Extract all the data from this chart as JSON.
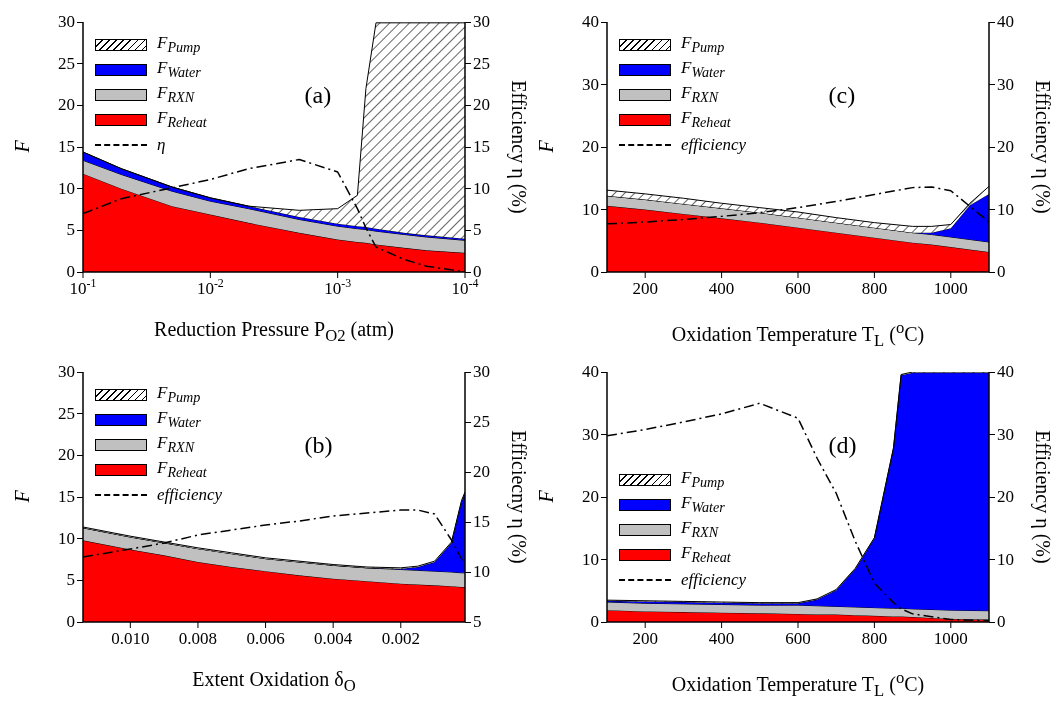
{
  "chart_data": [
    {
      "type": "area",
      "stacked": true,
      "log": "x",
      "xlabel": "Reduction Pressure P$_{O2}$ (atm)",
      "ylabel": "F",
      "y2label": "Efficiency η (%)",
      "annotations": [
        "(a)"
      ],
      "legend": "top left",
      "x": [
        0.1,
        0.05,
        0.02,
        0.01,
        0.005,
        0.002,
        0.001,
        0.0007,
        0.0006,
        0.0005,
        0.0003,
        0.0002,
        0.0001
      ],
      "xlim": [
        0.1,
        0.0001
      ],
      "xticks": [
        {
          "value": 0.1,
          "label": "10$^{-1}$"
        },
        {
          "value": 0.01,
          "label": "10$^{-2}$"
        },
        {
          "value": 0.001,
          "label": "10$^{-3}$"
        },
        {
          "value": 0.0001,
          "label": "10$^{-4}$"
        }
      ],
      "ylim": [
        0,
        30
      ],
      "yticks": [
        0,
        5,
        10,
        15,
        20,
        25,
        30
      ],
      "y2lim": [
        0,
        30
      ],
      "y2ticks": [
        0,
        5,
        10,
        15,
        20,
        25,
        30
      ],
      "series": [
        {
          "name": "F$_{Reheat}$",
          "color": "#ff0000",
          "values": [
            11.8,
            10.0,
            7.9,
            6.9,
            5.9,
            4.7,
            3.9,
            3.6,
            3.5,
            3.3,
            2.9,
            2.6,
            2.3
          ]
        },
        {
          "name": "F$_{RXN}$",
          "color": "#c0c0c0",
          "values": [
            1.6,
            1.7,
            1.8,
            1.6,
            1.7,
            1.6,
            1.6,
            1.6,
            1.6,
            1.6,
            1.6,
            1.6,
            1.5
          ]
        },
        {
          "name": "F$_{Water}$",
          "color": "#0000ff",
          "values": [
            1.0,
            0.7,
            0.5,
            0.4,
            0.3,
            0.3,
            0.3,
            0.3,
            0.3,
            0.3,
            0.2,
            0.2,
            0.2
          ]
        },
        {
          "name": "F$_{Pump}$",
          "color": "#ffffff",
          "values": [
            0,
            0,
            0,
            0,
            0,
            0.8,
            1.8,
            3.7,
            16.6,
            24.7,
            25.2,
            25.5,
            25.9
          ]
        },
        {
          "name": "η",
          "type": "line",
          "axis": "y2",
          "color": "#000000",
          "line_style": "dashed",
          "marker": "none",
          "values": [
            7.0,
            8.8,
            10.1,
            11.1,
            12.4,
            13.5,
            12.0,
            7.6,
            5.3,
            3.0,
            1.5,
            0.7,
            0
          ]
        }
      ]
    },
    {
      "type": "area",
      "stacked": true,
      "xlabel": "Oxidation Temperature T$_{L}$ ($^{o}$C)",
      "ylabel": "F",
      "y2label": "Efficiency η (%)",
      "annotations": [
        "(c)"
      ],
      "legend": "top left",
      "x": [
        100,
        200,
        300,
        400,
        500,
        600,
        700,
        800,
        900,
        950,
        1000,
        1050,
        1100
      ],
      "xlim": [
        100,
        1100
      ],
      "xticks": [
        200,
        400,
        600,
        800,
        1000
      ],
      "ylim": [
        0,
        40
      ],
      "yticks": [
        0,
        10,
        20,
        30,
        40
      ],
      "y2lim": [
        0,
        40
      ],
      "y2ticks": [
        0,
        10,
        20,
        30,
        40
      ],
      "series": [
        {
          "name": "F$_{Reheat}$",
          "color": "#ff0000",
          "values": [
            10.6,
            10.0,
            9.3,
            8.6,
            7.9,
            7.1,
            6.3,
            5.5,
            4.7,
            4.4,
            4.0,
            3.6,
            3.2
          ]
        },
        {
          "name": "F$_{RXN}$",
          "color": "#c0c0c0",
          "values": [
            1.6,
            1.6,
            1.6,
            1.6,
            1.6,
            1.6,
            1.6,
            1.6,
            1.6,
            1.6,
            1.6,
            1.6,
            1.6
          ]
        },
        {
          "name": "F$_{Water}$",
          "color": "#0000ff",
          "values": [
            0,
            0,
            0,
            0,
            0,
            0,
            0,
            0,
            0,
            0.3,
            1.4,
            5.5,
            7.7
          ]
        },
        {
          "name": "F$_{Pump}$",
          "color": "#ffffff",
          "values": [
            0.9,
            0.9,
            0.9,
            0.8,
            0.8,
            0.9,
            0.8,
            0.8,
            1.0,
            1.0,
            0.6,
            0.3,
            1.2
          ]
        },
        {
          "name": "efficiency",
          "type": "line",
          "axis": "y2",
          "color": "#000000",
          "line_style": "dashed",
          "marker": "none",
          "values": [
            7.7,
            8.0,
            8.4,
            8.9,
            9.5,
            10.3,
            11.3,
            12.4,
            13.5,
            13.6,
            13.0,
            10.5,
            8.0
          ]
        }
      ]
    },
    {
      "type": "area",
      "stacked": true,
      "xlabel": "Extent Oxidation δ$_{O}$",
      "ylabel": "F",
      "y2label": "Efficiecny η (%)",
      "annotations": [
        "(b)"
      ],
      "legend": "top left",
      "x": [
        0.0114,
        0.01,
        0.009,
        0.008,
        0.007,
        0.006,
        0.005,
        0.004,
        0.003,
        0.002,
        0.0015,
        0.001,
        0.0005,
        0.0002,
        0.0001
      ],
      "xlim": [
        0.0114,
        0.0001
      ],
      "xticks": [
        {
          "value": 0.01,
          "label": "0.010"
        },
        0.008,
        0.006,
        0.004,
        0.002
      ],
      "ylim": [
        0,
        30
      ],
      "yticks": [
        0,
        5,
        10,
        15,
        20,
        25,
        30
      ],
      "y2lim": [
        5,
        30
      ],
      "y2ticks": [
        5,
        10,
        15,
        20,
        25,
        30
      ],
      "series": [
        {
          "name": "F$_{Reheat}$",
          "color": "#ff0000",
          "values": [
            9.8,
            8.7,
            8.0,
            7.2,
            6.6,
            6.1,
            5.6,
            5.2,
            4.9,
            4.6,
            4.5,
            4.4,
            4.3,
            4.2,
            4.2
          ]
        },
        {
          "name": "F$_{RXN}$",
          "color": "#c0c0c0",
          "values": [
            1.5,
            1.5,
            1.5,
            1.6,
            1.6,
            1.5,
            1.6,
            1.6,
            1.6,
            1.7,
            1.7,
            1.7,
            1.7,
            1.7,
            1.7
          ]
        },
        {
          "name": "F$_{Water}$",
          "color": "#0000ff",
          "values": [
            0,
            0,
            0,
            0,
            0,
            0,
            0,
            0,
            0,
            0.1,
            0.4,
            1.1,
            3.5,
            8.6,
            9.6
          ]
        },
        {
          "name": "F$_{Pump}$",
          "color": "#ffffff",
          "values": [
            0.1,
            0.1,
            0.1,
            0.1,
            0.1,
            0.1,
            0.1,
            0.1,
            0.1,
            0.1,
            0.1,
            0.1,
            0.1,
            0.1,
            0.1
          ]
        },
        {
          "name": "efficiency",
          "type": "line",
          "axis": "y2",
          "color": "#000000",
          "line_style": "dashed",
          "marker": "none",
          "values": [
            11.5,
            12.3,
            12.9,
            13.7,
            14.2,
            14.7,
            15.1,
            15.6,
            15.9,
            16.2,
            16.2,
            15.8,
            13.2,
            11.3,
            10.7
          ]
        }
      ]
    },
    {
      "type": "area",
      "stacked": true,
      "xlabel": "Oxidation Temperature T$_{L}$ ($^{o}$C)",
      "ylabel": "F",
      "y2label": "Efficiency η (%)",
      "annotations": [
        "(d)"
      ],
      "legend": "left",
      "x": [
        100,
        200,
        300,
        400,
        500,
        600,
        650,
        700,
        750,
        800,
        850,
        870,
        900,
        1000,
        1100
      ],
      "xlim": [
        100,
        1100
      ],
      "xticks": [
        200,
        400,
        600,
        800,
        1000
      ],
      "ylim": [
        0,
        40
      ],
      "yticks": [
        0,
        10,
        20,
        30,
        40
      ],
      "y2lim": [
        0,
        40
      ],
      "y2ticks": [
        0,
        10,
        20,
        30,
        40
      ],
      "series": [
        {
          "name": "F$_{Reheat}$",
          "color": "#ff0000",
          "values": [
            1.9,
            1.7,
            1.6,
            1.5,
            1.4,
            1.3,
            1.2,
            1.2,
            1.1,
            1.0,
            0.9,
            0.9,
            0.8,
            0.5,
            0.4
          ]
        },
        {
          "name": "F$_{RXN}$",
          "color": "#c0c0c0",
          "values": [
            1.3,
            1.3,
            1.3,
            1.3,
            1.3,
            1.4,
            1.4,
            1.3,
            1.3,
            1.3,
            1.3,
            1.3,
            1.3,
            1.4,
            1.4
          ]
        },
        {
          "name": "F$_{Water}$",
          "color": "#0000ff",
          "values": [
            0.2,
            0.3,
            0.3,
            0.3,
            0.3,
            0.3,
            1.0,
            2.6,
            6.1,
            11.1,
            25.6,
            37.3,
            37.8,
            38.0,
            38.1
          ]
        },
        {
          "name": "F$_{Pump}$",
          "color": "#ffffff",
          "values": [
            0.1,
            0.1,
            0.1,
            0.1,
            0.1,
            0.1,
            0.1,
            0.1,
            0.1,
            0.1,
            0.1,
            0.1,
            0.1,
            0.1,
            0.1
          ]
        },
        {
          "name": "efficiency",
          "type": "line",
          "axis": "y2",
          "color": "#000000",
          "line_style": "dashed",
          "marker": "none",
          "values": [
            29.8,
            30.8,
            32.0,
            33.3,
            35.0,
            32.6,
            26.2,
            20.6,
            12.9,
            6.2,
            3.1,
            2.1,
            1.3,
            0.4,
            0.2
          ]
        }
      ]
    }
  ]
}
